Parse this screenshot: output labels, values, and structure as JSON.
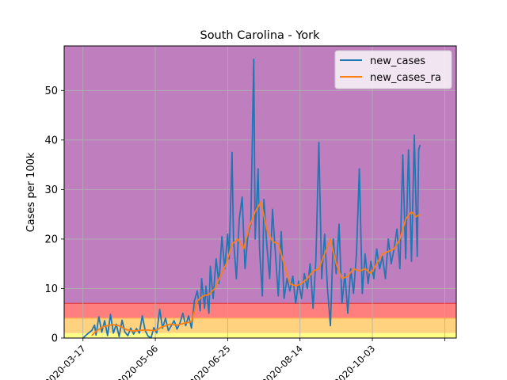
{
  "chart_data": {
    "type": "line",
    "title": "South Carolina - York",
    "xlabel": "",
    "ylabel": "Cases per 100k",
    "xlim": [
      "2020-03-04",
      "2020-11-30"
    ],
    "ylim": [
      0,
      59
    ],
    "yticks": [
      0,
      10,
      20,
      30,
      40,
      50
    ],
    "xticks": [
      "2020-03-17",
      "2020-05-06",
      "2020-06-25",
      "2020-08-14",
      "2020-10-03",
      "2020-11-22"
    ],
    "xtick_labels": [
      "2020-03-17",
      "2020-05-06",
      "2020-06-25",
      "2020-08-14",
      "2020-10-03",
      ""
    ],
    "grid": true,
    "legend_position": "top-right",
    "bands": [
      {
        "from": 0,
        "to": 1,
        "color": "#ffff88"
      },
      {
        "from": 1,
        "to": 4,
        "color": "#ffd27f"
      },
      {
        "from": 4,
        "to": 7,
        "color": "#ff7f7f"
      },
      {
        "from": 7,
        "to": 59,
        "color": "#bf7fbf"
      }
    ],
    "threshold_lines": [
      {
        "y": 4,
        "color": "#ffb450"
      },
      {
        "y": 7,
        "color": "#e83a3a"
      }
    ],
    "series": [
      {
        "name": "new_cases",
        "color": "#1f77b4",
        "points": [
          [
            "2020-03-17",
            0.0
          ],
          [
            "2020-03-20",
            0.8
          ],
          [
            "2020-03-23",
            1.5
          ],
          [
            "2020-03-25",
            2.6
          ],
          [
            "2020-03-26",
            0.6
          ],
          [
            "2020-03-28",
            4.3
          ],
          [
            "2020-03-30",
            1.2
          ],
          [
            "2020-04-01",
            3.5
          ],
          [
            "2020-04-03",
            0.5
          ],
          [
            "2020-04-05",
            4.8
          ],
          [
            "2020-04-07",
            1.0
          ],
          [
            "2020-04-09",
            2.8
          ],
          [
            "2020-04-11",
            0.3
          ],
          [
            "2020-04-13",
            3.6
          ],
          [
            "2020-04-15",
            1.2
          ],
          [
            "2020-04-17",
            0.5
          ],
          [
            "2020-04-19",
            2.0
          ],
          [
            "2020-04-21",
            0.8
          ],
          [
            "2020-04-23",
            1.9
          ],
          [
            "2020-04-25",
            1.0
          ],
          [
            "2020-04-27",
            4.5
          ],
          [
            "2020-04-29",
            1.5
          ],
          [
            "2020-05-01",
            0.4
          ],
          [
            "2020-05-03",
            0.0
          ],
          [
            "2020-05-05",
            2.1
          ],
          [
            "2020-05-07",
            1.0
          ],
          [
            "2020-05-09",
            5.8
          ],
          [
            "2020-05-11",
            2.0
          ],
          [
            "2020-05-13",
            4.0
          ],
          [
            "2020-05-15",
            1.5
          ],
          [
            "2020-05-17",
            2.5
          ],
          [
            "2020-05-19",
            3.5
          ],
          [
            "2020-05-21",
            1.8
          ],
          [
            "2020-05-23",
            3.0
          ],
          [
            "2020-05-25",
            5.0
          ],
          [
            "2020-05-27",
            2.5
          ],
          [
            "2020-05-29",
            4.5
          ],
          [
            "2020-05-31",
            2.0
          ],
          [
            "2020-06-02",
            7.5
          ],
          [
            "2020-06-04",
            9.5
          ],
          [
            "2020-06-06",
            5.5
          ],
          [
            "2020-06-07",
            12.0
          ],
          [
            "2020-06-09",
            6.0
          ],
          [
            "2020-06-10",
            10.5
          ],
          [
            "2020-06-12",
            5.0
          ],
          [
            "2020-06-13",
            14.5
          ],
          [
            "2020-06-15",
            8.0
          ],
          [
            "2020-06-17",
            16.0
          ],
          [
            "2020-06-19",
            11.0
          ],
          [
            "2020-06-21",
            20.5
          ],
          [
            "2020-06-23",
            14.0
          ],
          [
            "2020-06-25",
            21.0
          ],
          [
            "2020-06-26",
            16.0
          ],
          [
            "2020-06-28",
            37.5
          ],
          [
            "2020-06-29",
            20.0
          ],
          [
            "2020-07-01",
            12.0
          ],
          [
            "2020-07-03",
            24.0
          ],
          [
            "2020-07-05",
            28.5
          ],
          [
            "2020-07-07",
            14.0
          ],
          [
            "2020-07-09",
            21.0
          ],
          [
            "2020-07-11",
            23.0
          ],
          [
            "2020-07-13",
            56.3
          ],
          [
            "2020-07-14",
            20.0
          ],
          [
            "2020-07-16",
            34.2
          ],
          [
            "2020-07-17",
            18.0
          ],
          [
            "2020-07-19",
            8.5
          ],
          [
            "2020-07-20",
            28.0
          ],
          [
            "2020-07-22",
            19.0
          ],
          [
            "2020-07-24",
            12.0
          ],
          [
            "2020-07-26",
            26.0
          ],
          [
            "2020-07-28",
            17.0
          ],
          [
            "2020-07-30",
            8.5
          ],
          [
            "2020-08-01",
            21.5
          ],
          [
            "2020-08-03",
            8.0
          ],
          [
            "2020-08-05",
            12.0
          ],
          [
            "2020-08-07",
            9.5
          ],
          [
            "2020-08-09",
            12.5
          ],
          [
            "2020-08-11",
            7.0
          ],
          [
            "2020-08-13",
            11.5
          ],
          [
            "2020-08-15",
            8.0
          ],
          [
            "2020-08-17",
            13.0
          ],
          [
            "2020-08-19",
            10.0
          ],
          [
            "2020-08-21",
            15.0
          ],
          [
            "2020-08-23",
            6.0
          ],
          [
            "2020-08-25",
            16.0
          ],
          [
            "2020-08-27",
            39.5
          ],
          [
            "2020-08-29",
            12.0
          ],
          [
            "2020-08-31",
            21.0
          ],
          [
            "2020-09-02",
            10.0
          ],
          [
            "2020-09-04",
            2.5
          ],
          [
            "2020-09-06",
            20.0
          ],
          [
            "2020-09-08",
            13.0
          ],
          [
            "2020-09-10",
            23.0
          ],
          [
            "2020-09-12",
            7.0
          ],
          [
            "2020-09-14",
            13.0
          ],
          [
            "2020-09-16",
            5.0
          ],
          [
            "2020-09-18",
            14.0
          ],
          [
            "2020-09-20",
            9.0
          ],
          [
            "2020-09-22",
            17.0
          ],
          [
            "2020-09-24",
            34.2
          ],
          [
            "2020-09-26",
            9.0
          ],
          [
            "2020-09-28",
            17.0
          ],
          [
            "2020-09-30",
            11.0
          ],
          [
            "2020-10-02",
            15.5
          ],
          [
            "2020-10-04",
            12.0
          ],
          [
            "2020-10-06",
            18.0
          ],
          [
            "2020-10-08",
            14.0
          ],
          [
            "2020-10-10",
            16.5
          ],
          [
            "2020-10-12",
            12.0
          ],
          [
            "2020-10-14",
            20.0
          ],
          [
            "2020-10-16",
            15.0
          ],
          [
            "2020-10-18",
            18.0
          ],
          [
            "2020-10-20",
            22.0
          ],
          [
            "2020-10-22",
            14.0
          ],
          [
            "2020-10-24",
            37.0
          ],
          [
            "2020-10-26",
            16.0
          ],
          [
            "2020-10-28",
            38.0
          ],
          [
            "2020-10-30",
            15.5
          ],
          [
            "2020-11-01",
            41.0
          ],
          [
            "2020-11-03",
            16.5
          ],
          [
            "2020-11-04",
            38.0
          ],
          [
            "2020-11-05",
            39.0
          ]
        ]
      },
      {
        "name": "new_cases_ra",
        "color": "#ff7f0e",
        "points": [
          [
            "2020-03-23",
            0.5
          ],
          [
            "2020-03-27",
            1.6
          ],
          [
            "2020-04-01",
            2.4
          ],
          [
            "2020-04-06",
            2.7
          ],
          [
            "2020-04-11",
            2.5
          ],
          [
            "2020-04-16",
            1.7
          ],
          [
            "2020-04-21",
            1.4
          ],
          [
            "2020-04-26",
            1.6
          ],
          [
            "2020-05-01",
            1.6
          ],
          [
            "2020-05-06",
            1.5
          ],
          [
            "2020-05-11",
            2.3
          ],
          [
            "2020-05-16",
            2.8
          ],
          [
            "2020-05-21",
            2.6
          ],
          [
            "2020-05-26",
            3.0
          ],
          [
            "2020-05-31",
            3.3
          ],
          [
            "2020-06-04",
            7.5
          ],
          [
            "2020-06-08",
            8.5
          ],
          [
            "2020-06-12",
            8.8
          ],
          [
            "2020-06-16",
            10.0
          ],
          [
            "2020-06-20",
            12.5
          ],
          [
            "2020-06-24",
            15.0
          ],
          [
            "2020-06-28",
            19.0
          ],
          [
            "2020-07-02",
            20.0
          ],
          [
            "2020-07-06",
            18.0
          ],
          [
            "2020-07-10",
            22.5
          ],
          [
            "2020-07-14",
            25.5
          ],
          [
            "2020-07-18",
            27.5
          ],
          [
            "2020-07-22",
            22.0
          ],
          [
            "2020-07-26",
            19.5
          ],
          [
            "2020-07-30",
            19.0
          ],
          [
            "2020-08-03",
            15.0
          ],
          [
            "2020-08-07",
            11.0
          ],
          [
            "2020-08-11",
            10.5
          ],
          [
            "2020-08-15",
            11.0
          ],
          [
            "2020-08-19",
            12.0
          ],
          [
            "2020-08-23",
            13.5
          ],
          [
            "2020-08-27",
            14.0
          ],
          [
            "2020-08-31",
            17.0
          ],
          [
            "2020-09-04",
            20.0
          ],
          [
            "2020-09-08",
            15.0
          ],
          [
            "2020-09-12",
            12.0
          ],
          [
            "2020-09-16",
            12.5
          ],
          [
            "2020-09-20",
            14.0
          ],
          [
            "2020-09-24",
            13.5
          ],
          [
            "2020-09-28",
            14.0
          ],
          [
            "2020-10-02",
            13.0
          ],
          [
            "2020-10-06",
            15.0
          ],
          [
            "2020-10-10",
            17.0
          ],
          [
            "2020-10-14",
            17.5
          ],
          [
            "2020-10-18",
            18.0
          ],
          [
            "2020-10-22",
            20.0
          ],
          [
            "2020-10-26",
            24.0
          ],
          [
            "2020-10-30",
            25.5
          ],
          [
            "2020-11-02",
            24.5
          ],
          [
            "2020-11-05",
            25.0
          ]
        ]
      }
    ]
  }
}
